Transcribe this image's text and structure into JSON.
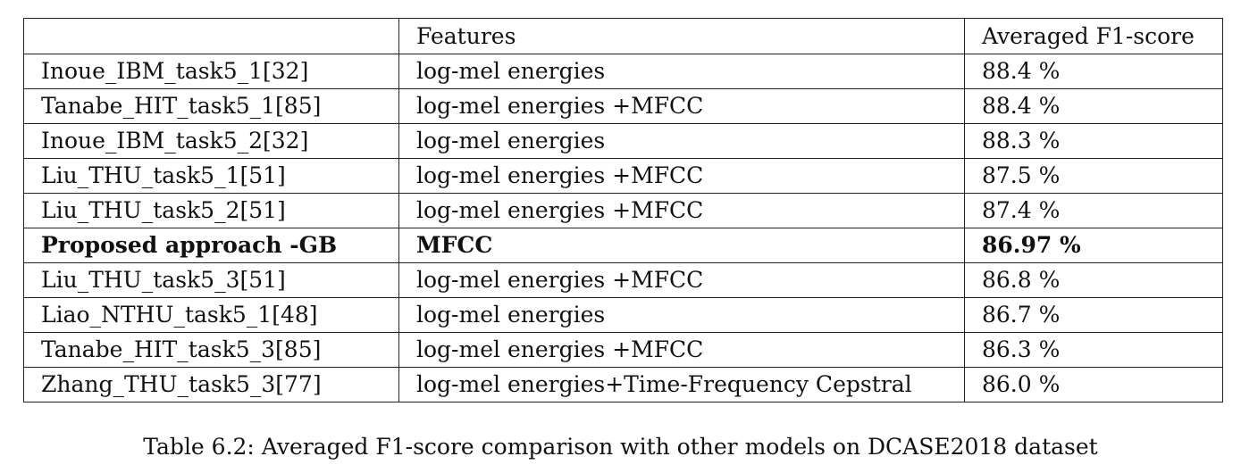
{
  "table": {
    "headers": [
      "",
      "Features",
      "Averaged F1-score"
    ],
    "rows": [
      {
        "model": "Inoue_IBM_task5_1[32]",
        "features": "log-mel energies",
        "score": "88.4 %",
        "bold": false
      },
      {
        "model": "Tanabe_HIT_task5_1[85]",
        "features": "log-mel energies +MFCC",
        "score": "88.4 %",
        "bold": false
      },
      {
        "model": "Inoue_IBM_task5_2[32]",
        "features": "log-mel energies",
        "score": "88.3 %",
        "bold": false
      },
      {
        "model": "Liu_THU_task5_1[51]",
        "features": "log-mel energies +MFCC",
        "score": "87.5 %",
        "bold": false
      },
      {
        "model": "Liu_THU_task5_2[51]",
        "features": "log-mel energies +MFCC",
        "score": "87.4 %",
        "bold": false
      },
      {
        "model": "Proposed approach -GB",
        "features": "MFCC",
        "score": "86.97 %",
        "bold": true
      },
      {
        "model": "Liu_THU_task5_3[51]",
        "features": "log-mel energies +MFCC",
        "score": "86.8 %",
        "bold": false
      },
      {
        "model": "Liao_NTHU_task5_1[48]",
        "features": "log-mel energies",
        "score": "86.7 %",
        "bold": false
      },
      {
        "model": "Tanabe_HIT_task5_3[85]",
        "features": "log-mel energies +MFCC",
        "score": "86.3 %",
        "bold": false
      },
      {
        "model": "Zhang_THU_task5_3[77]",
        "features": "log-mel energies+Time-Frequency Cepstral",
        "score": "86.0 %",
        "bold": false
      }
    ]
  },
  "caption": "Table 6.2: Averaged F1-score comparison with other models on DCASE2018 dataset"
}
